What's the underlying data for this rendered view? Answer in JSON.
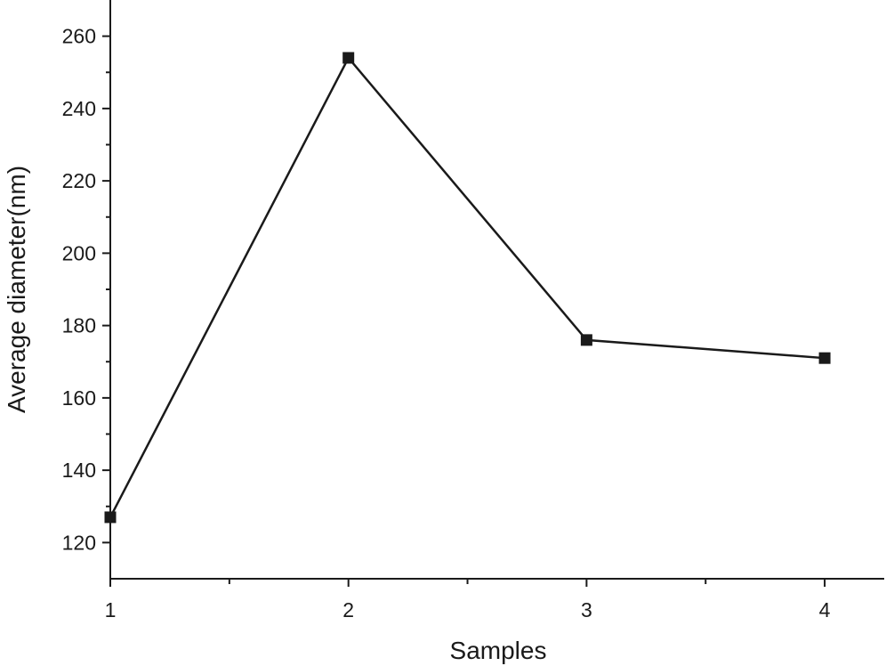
{
  "chart_data": {
    "type": "line",
    "xlabel": "Samples",
    "ylabel": "Average diameter(nm)",
    "x": [
      1,
      2,
      3,
      4
    ],
    "series": [
      {
        "values": [
          127,
          254,
          176,
          171
        ]
      }
    ],
    "xlim": [
      1,
      4.25
    ],
    "ylim": [
      110,
      270
    ],
    "x_major_ticks": [
      1,
      2,
      3,
      4
    ],
    "x_minor_ticks": [
      1.5,
      2.5,
      3.5
    ],
    "y_major_ticks": [
      120,
      140,
      160,
      180,
      200,
      220,
      240,
      260
    ],
    "y_minor_ticks": [
      130,
      150,
      170,
      190,
      210,
      230,
      250
    ],
    "grid": false,
    "legend": "none",
    "colors": {
      "line": "#1a1a1a",
      "marker": "#1a1a1a",
      "axis": "#1a1a1a"
    },
    "marker": "square"
  }
}
